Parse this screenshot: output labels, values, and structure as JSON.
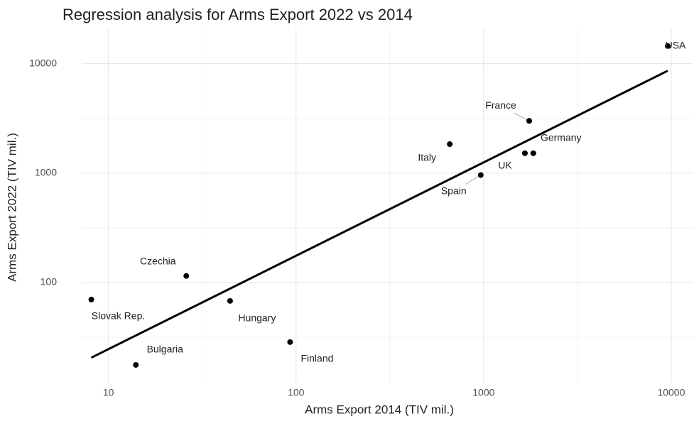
{
  "chart_data": {
    "type": "scatter",
    "title": "Regression analysis for Arms Export 2022 vs 2014",
    "x_label": "Arms Export 2014 (TIV mil.)",
    "y_label": "Arms Export 2022 (TIV mil.)",
    "x_scale": "log",
    "y_scale": "log",
    "grid": true,
    "color": "#000000",
    "labels": [
      "Slovak Rep.",
      "Czechia",
      "Bulgaria",
      "Hungary",
      "Finland",
      "Italy",
      "Spain",
      "UK",
      "Germany",
      "France",
      "USA"
    ],
    "x": [
      8.1,
      26,
      14,
      44.5,
      93,
      660,
      965,
      1660,
      1840,
      1750,
      9580
    ],
    "y": [
      70,
      115,
      17.7,
      68,
      28.6,
      1840,
      960,
      1520,
      1520,
      3000,
      14500
    ],
    "fit_line": {
      "x": [
        8.1,
        9580
      ],
      "y": [
        20.6,
        8610
      ]
    },
    "xlim": [
      7.2,
      13000
    ],
    "ylim": [
      12,
      21000
    ],
    "xticks": [
      10,
      100,
      1000,
      10000
    ],
    "yticks": [
      100,
      1000,
      10000
    ],
    "xminor": [
      31.6,
      316,
      3162
    ],
    "yminor": [
      31.6,
      316,
      3162
    ]
  }
}
